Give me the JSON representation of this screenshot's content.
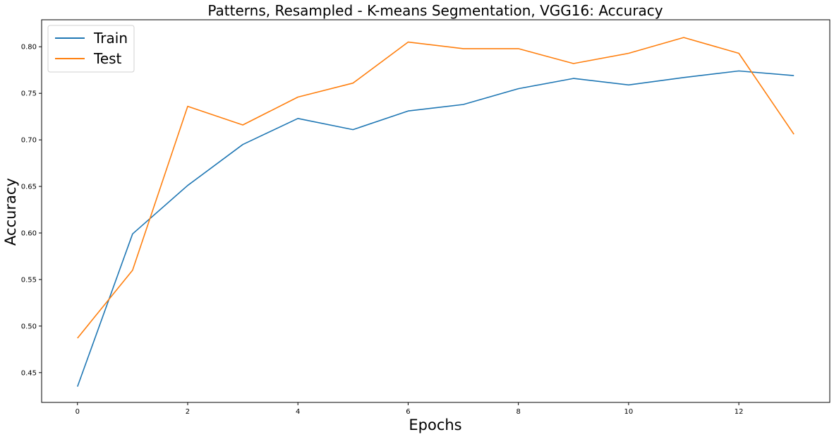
{
  "chart_data": {
    "type": "line",
    "title": "Patterns, Resampled - K-means Segmentation, VGG16: Accuracy",
    "xlabel": "Epochs",
    "ylabel": "Accuracy",
    "x": [
      0,
      1,
      2,
      3,
      4,
      5,
      6,
      7,
      8,
      9,
      10,
      11,
      12,
      13
    ],
    "xlim": [
      -0.65,
      13.65
    ],
    "ylim": [
      0.418,
      0.829
    ],
    "xticks": [
      0,
      2,
      4,
      6,
      8,
      10,
      12
    ],
    "yticks": [
      0.45,
      0.5,
      0.55,
      0.6,
      0.65,
      0.7,
      0.75,
      0.8
    ],
    "ytick_labels": [
      "0.45",
      "0.50",
      "0.55",
      "0.60",
      "0.65",
      "0.70",
      "0.75",
      "0.80"
    ],
    "grid": false,
    "legend_position": "top-left",
    "series": [
      {
        "name": "Train",
        "color": "#1f77b4",
        "values": [
          0.435,
          0.599,
          0.651,
          0.695,
          0.723,
          0.711,
          0.731,
          0.738,
          0.755,
          0.766,
          0.759,
          0.767,
          0.774,
          0.769
        ]
      },
      {
        "name": "Test",
        "color": "#ff7f0e",
        "values": [
          0.487,
          0.56,
          0.736,
          0.716,
          0.746,
          0.761,
          0.805,
          0.798,
          0.798,
          0.782,
          0.793,
          0.81,
          0.793,
          0.706
        ]
      }
    ]
  }
}
